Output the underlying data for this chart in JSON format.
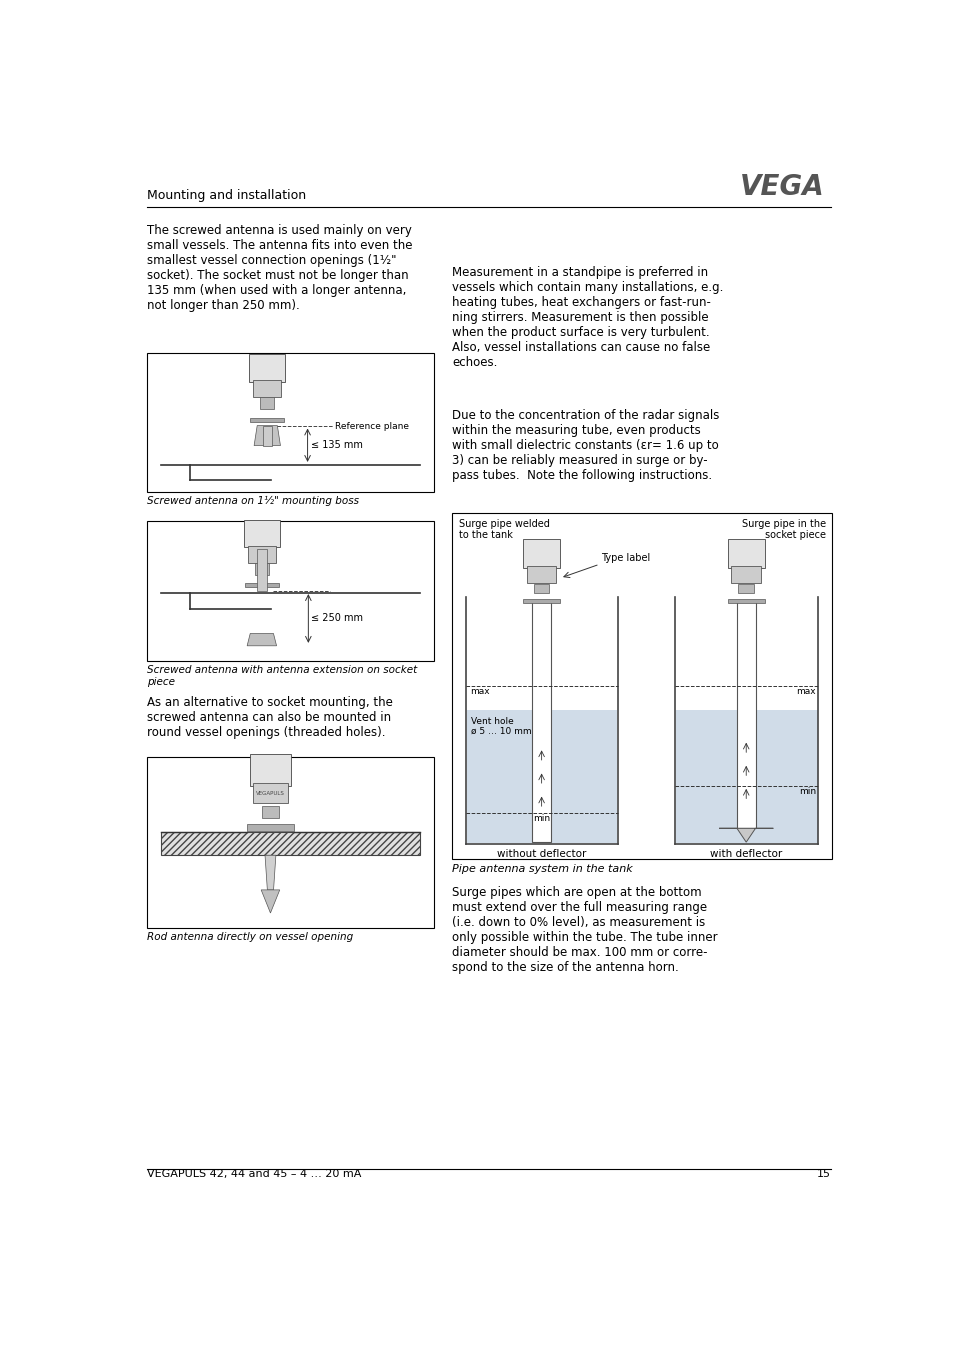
{
  "page_bg": "#ffffff",
  "header_text": "Mounting and installation",
  "vega_logo": "VEGA",
  "footer_text": "VEGAPULS 42, 44 and 45 – 4 … 20 mA",
  "footer_page": "15",
  "left_col_text1": "The screwed antenna is used mainly on very\nsmall vessels. The antenna fits into even the\nsmallest vessel connection openings (1½\"\nsocket). The socket must not be longer than\n135 mm (when used with a longer antenna,\nnot longer than 250 mm).",
  "caption1": "Screwed antenna on 1½\" mounting boss",
  "caption2": "Screwed antenna with antenna extension on socket\npiece",
  "left_col_text2": "As an alternative to socket mounting, the\nscrewed antenna can also be mounted in\nround vessel openings (threaded holes).",
  "caption3": "Rod antenna directly on vessel opening",
  "right_col_text1": "Measurement in a standpipe is preferred in\nvessels which contain many installations, e.g.\nheating tubes, heat exchangers or fast-run-\nning stirrers. Measurement is then possible\nwhen the product surface is very turbulent.\nAlso, vessel installations can cause no false\nechoes.",
  "right_col_text2": "Due to the concentration of the radar signals\nwithin the measuring tube, even products\nwith small dielectric constants (εr= 1.6 up to\n3) can be reliably measured in surge or by-\npass tubes.  Note the following instructions.",
  "label_surge_welded": "Surge pipe welded\nto the tank",
  "label_surge_socket": "Surge pipe in the\nsocket piece",
  "label_type": "Type label",
  "label_vent": "Vent hole\nø 5 … 10 mm",
  "label_without": "without deflector",
  "label_with": "with deflector",
  "label_pipe_caption": "Pipe antenna system in the tank",
  "right_col_text3": "Surge pipes which are open at the bottom\nmust extend over the full measuring range\n(i.e. down to 0% level), as measurement is\nonly possible within the tube. The tube inner\ndiameter should be max. 100 mm or corre-\nspond to the size of the antenna horn.",
  "text_color": "#000000",
  "line_color": "#000000",
  "box_border": "#000000",
  "light_gray": "#d0d0d0",
  "mid_gray": "#a0a0a0",
  "dark_gray": "#606060"
}
